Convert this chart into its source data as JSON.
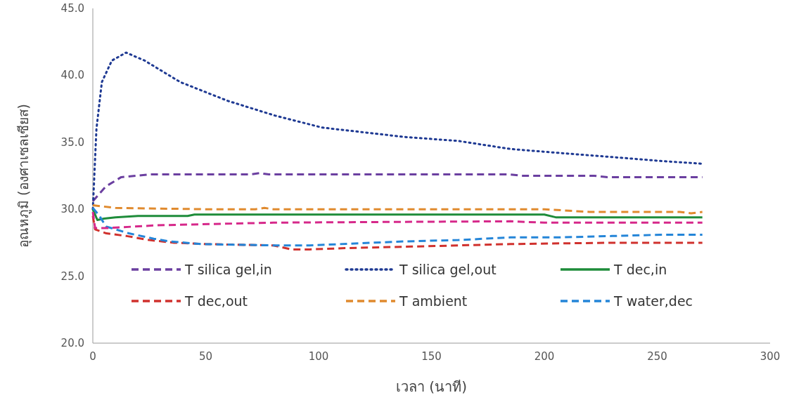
{
  "chart_data": {
    "type": "line",
    "xlabel": "เวลา (นาที)",
    "ylabel": "อุณหภูมิ (องศาเซลเซียส)",
    "xlim": [
      0,
      300
    ],
    "xticks": [
      0,
      50,
      100,
      150,
      200,
      250,
      300
    ],
    "ylim": [
      20,
      45
    ],
    "yticks": [
      {
        "value": 20,
        "label": "20.0"
      },
      {
        "value": 25,
        "label": "25.0"
      },
      {
        "value": 30,
        "label": "30.0"
      },
      {
        "value": 35,
        "label": "35.0"
      },
      {
        "value": 40,
        "label": "40.0"
      },
      {
        "value": 45,
        "label": "45.0"
      }
    ],
    "grid": false,
    "legend": "bottom",
    "series": [
      {
        "name": "T silica gel,in",
        "color": "#6b3fa0",
        "line_style": "dashed",
        "x": [
          0,
          5.7,
          12.6,
          25,
          70,
          74,
          78,
          185,
          190,
          222,
          228,
          270
        ],
        "values": [
          30.6,
          31.7,
          32.4,
          32.6,
          32.6,
          32.7,
          32.6,
          32.6,
          32.5,
          32.5,
          32.4,
          32.4
        ]
      },
      {
        "name": "T silica gel,out",
        "color": "#1f3a93",
        "line_style": "dotted",
        "x": [
          0,
          1.6,
          4,
          8.4,
          14.7,
          23,
          38.7,
          59.7,
          80.6,
          101.6,
          122.5,
          138,
          162,
          185,
          207,
          230,
          252,
          270
        ],
        "values": [
          30.0,
          36.0,
          39.5,
          41.1,
          41.7,
          41.1,
          39.5,
          38.1,
          37.0,
          36.1,
          35.7,
          35.4,
          35.1,
          34.5,
          34.2,
          33.9,
          33.6,
          33.4
        ]
      },
      {
        "name": "T dec,in",
        "color": "#1e8c3a",
        "line_style": "solid",
        "x": [
          0,
          2,
          5,
          10,
          20,
          42,
          45,
          200,
          205,
          270
        ],
        "values": [
          30.0,
          29.2,
          29.3,
          29.4,
          29.5,
          29.5,
          29.6,
          29.6,
          29.4,
          29.4
        ]
      },
      {
        "name": "T dec,out",
        "color": "#d0312d",
        "line_style": "dashed",
        "x": [
          0,
          1,
          6,
          15,
          25,
          36,
          50,
          80,
          88,
          96,
          112,
          138,
          162,
          185,
          207,
          230,
          270
        ],
        "values": [
          29.5,
          28.5,
          28.2,
          28.0,
          27.7,
          27.5,
          27.4,
          27.3,
          27.0,
          27.0,
          27.1,
          27.2,
          27.3,
          27.4,
          27.45,
          27.5,
          27.5
        ]
      },
      {
        "name": "T ambient",
        "color": "#e08a2e",
        "line_style": "dashed",
        "x": [
          0,
          10,
          50,
          72,
          76,
          80,
          200,
          220,
          260,
          265,
          270
        ],
        "values": [
          30.3,
          30.1,
          30.0,
          30.0,
          30.1,
          30.0,
          30.0,
          29.8,
          29.8,
          29.7,
          29.8
        ]
      },
      {
        "name": "T water,dec",
        "color": "#2485d8",
        "line_style": "dashed",
        "x": [
          0,
          3,
          4,
          6,
          16,
          27,
          34,
          48,
          80,
          96,
          138,
          162,
          185,
          207,
          230,
          252,
          270
        ],
        "values": [
          30.1,
          29.5,
          29.2,
          28.7,
          28.2,
          27.8,
          27.6,
          27.4,
          27.3,
          27.3,
          27.6,
          27.7,
          27.9,
          27.9,
          28.0,
          28.1,
          28.1
        ]
      },
      {
        "color": "#d6288a",
        "line_style": "dashed",
        "x": [
          0,
          1,
          7,
          28,
          80,
          129,
          185,
          200,
          270
        ],
        "values": [
          29.8,
          28.6,
          28.6,
          28.8,
          29.0,
          29.05,
          29.1,
          29.0,
          29.0
        ]
      }
    ]
  }
}
